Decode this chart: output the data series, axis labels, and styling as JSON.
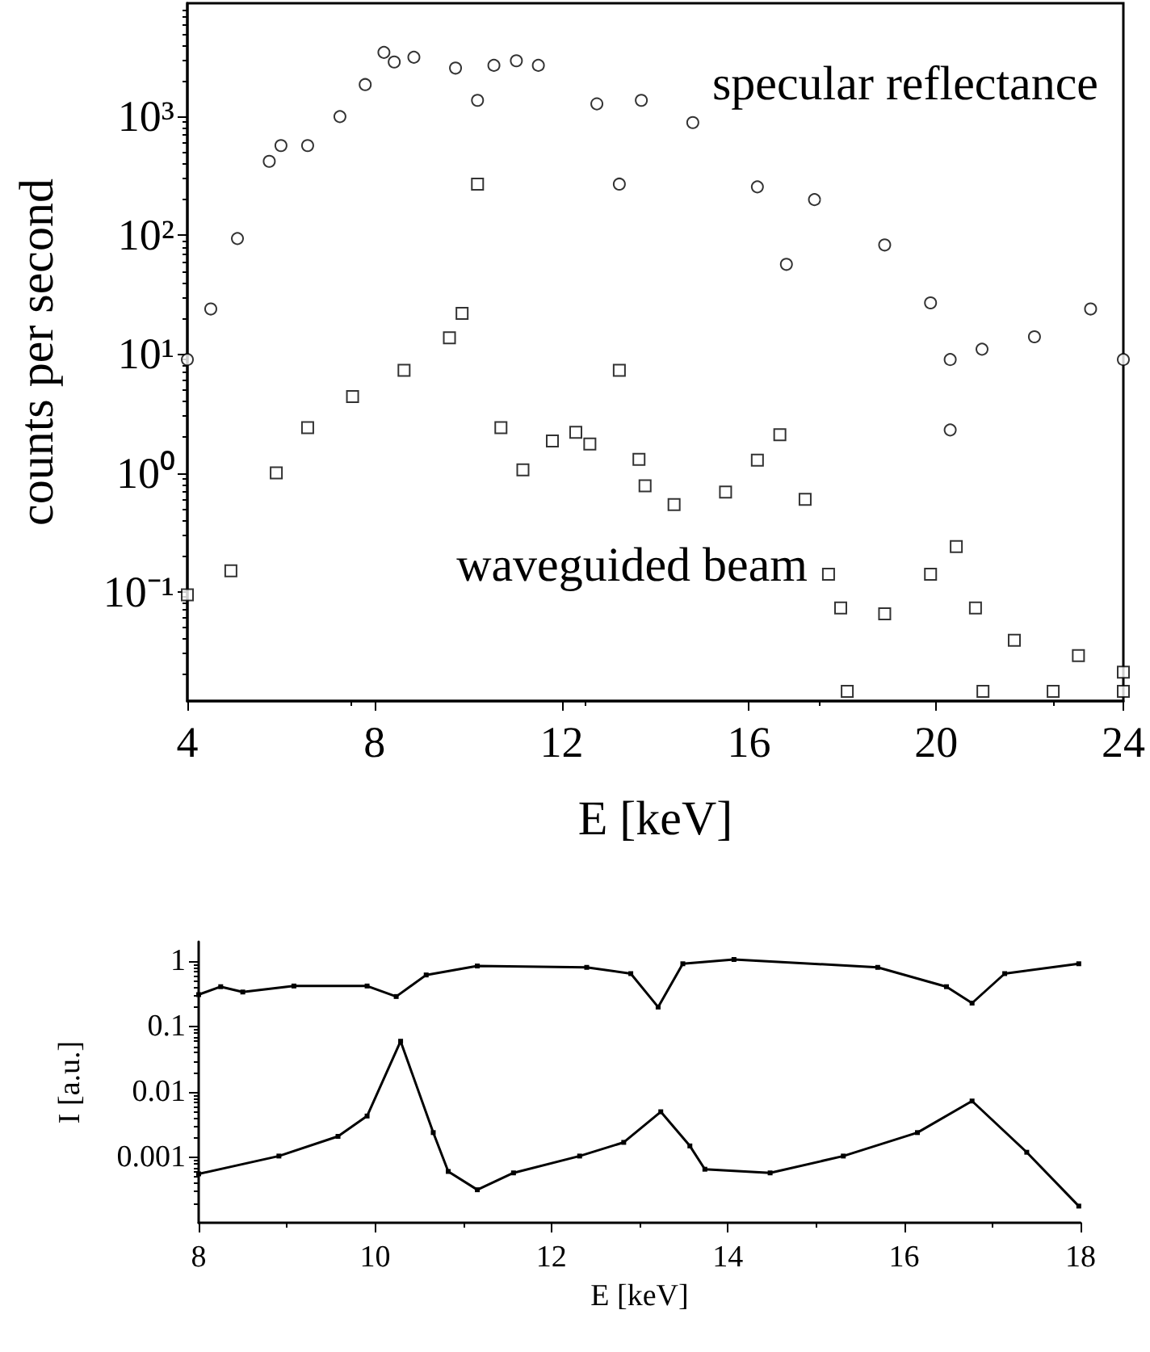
{
  "chart_data": [
    {
      "type": "scatter",
      "xlabel": "E [keV]",
      "ylabel": "counts per second",
      "log": "y",
      "grid": false,
      "legend": false,
      "xlim": [
        4,
        24
      ],
      "xticks": [
        4,
        8,
        12,
        16,
        20,
        24
      ],
      "ylim": [
        0.012,
        9000
      ],
      "yticks": [
        {
          "value": 0.1,
          "label": "10⁻¹"
        },
        {
          "value": 1,
          "label": "10⁰"
        },
        {
          "value": 10,
          "label": "10¹"
        },
        {
          "value": 100,
          "label": "10²"
        },
        {
          "value": 1000,
          "label": "10³"
        }
      ],
      "series": [
        {
          "name": "specular reflectance",
          "color": "#000000",
          "marker": "circle",
          "x": [
            4.0,
            4.5,
            5.07,
            5.75,
            6.0,
            6.57,
            7.26,
            7.8,
            8.2,
            8.42,
            8.84,
            9.73,
            10.2,
            10.55,
            11.03,
            11.5,
            12.75,
            13.23,
            13.7,
            14.8,
            16.18,
            16.8,
            17.4,
            18.9,
            19.88,
            20.3,
            20.3,
            20.98,
            22.1,
            23.3,
            24.0
          ],
          "values": [
            9,
            24,
            94,
            420,
            570,
            570,
            1000,
            1860,
            3470,
            2880,
            3160,
            2560,
            1370,
            2700,
            2950,
            2700,
            1280,
            270,
            1370,
            890,
            256,
            57,
            200,
            83,
            27,
            9,
            2.3,
            11,
            14,
            24,
            9
          ]
        },
        {
          "name": "waveguided beam",
          "color": "#000000",
          "marker": "square",
          "x": [
            4.0,
            4.93,
            5.9,
            6.57,
            7.53,
            8.63,
            9.6,
            9.87,
            10.2,
            10.7,
            11.17,
            11.8,
            12.3,
            12.6,
            13.23,
            13.65,
            13.78,
            14.4,
            15.5,
            16.18,
            16.66,
            17.2,
            17.7,
            17.96,
            18.1,
            18.9,
            19.88,
            20.43,
            20.84,
            21.0,
            21.67,
            22.5,
            23.04,
            24.0,
            24.0
          ],
          "values": [
            0.094,
            0.15,
            1.0,
            2.4,
            4.4,
            7.3,
            13.7,
            22,
            270,
            2.4,
            1.06,
            1.86,
            2.2,
            1.75,
            7.3,
            1.3,
            0.78,
            0.54,
            0.69,
            1.28,
            2.1,
            0.6,
            0.14,
            0.073,
            0.0145,
            0.065,
            0.14,
            0.24,
            0.073,
            0.0145,
            0.039,
            0.0145,
            0.029,
            0.021,
            0.0145
          ]
        }
      ]
    },
    {
      "type": "line",
      "xlabel": "E [keV]",
      "ylabel": "I [a.u.]",
      "log": "y",
      "grid": false,
      "legend": false,
      "marker": "square",
      "xlim": [
        8,
        18
      ],
      "xticks": [
        8,
        10,
        12,
        14,
        16,
        18
      ],
      "ylim": [
        0.0001,
        2
      ],
      "yticks": [
        0.001,
        0.01,
        0.1,
        1
      ],
      "series": [
        {
          "color": "#000000",
          "x": [
            8.0,
            8.25,
            8.5,
            9.08,
            9.91,
            10.24,
            10.58,
            11.16,
            12.4,
            12.9,
            13.21,
            13.49,
            14.07,
            15.7,
            16.48,
            16.77,
            17.14,
            17.98
          ],
          "values": [
            0.31,
            0.41,
            0.34,
            0.42,
            0.42,
            0.29,
            0.62,
            0.85,
            0.81,
            0.65,
            0.2,
            0.92,
            1.07,
            0.81,
            0.41,
            0.23,
            0.65,
            0.92
          ]
        },
        {
          "color": "#000000",
          "x": [
            8.0,
            8.91,
            9.58,
            9.91,
            10.29,
            10.66,
            10.83,
            11.16,
            11.57,
            12.32,
            12.82,
            13.24,
            13.57,
            13.74,
            14.48,
            15.31,
            16.15,
            16.77,
            17.39,
            17.98
          ],
          "values": [
            0.00056,
            0.00105,
            0.0021,
            0.0043,
            0.06,
            0.0024,
            0.00061,
            0.00032,
            0.00058,
            0.00105,
            0.0017,
            0.005,
            0.0015,
            0.00066,
            0.00058,
            0.00105,
            0.0024,
            0.0073,
            0.0012,
            0.00018
          ]
        }
      ]
    }
  ]
}
